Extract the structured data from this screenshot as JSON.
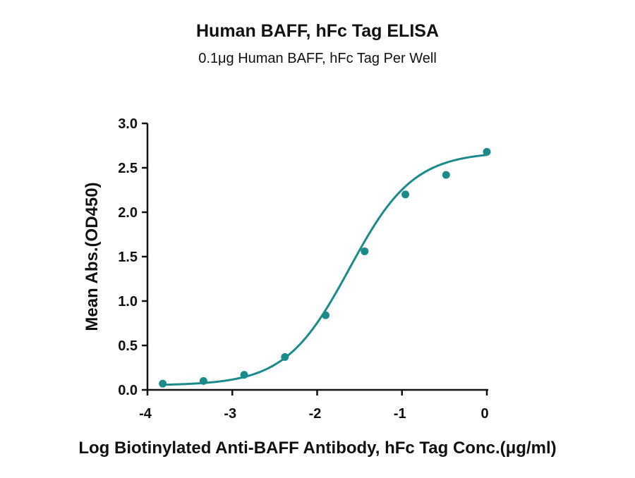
{
  "chart_data": {
    "type": "scatter",
    "title": "Human BAFF, hFc Tag ELISA",
    "subtitle": "0.1μg Human BAFF, hFc Tag Per Well",
    "xlabel": "Log Biotinylated Anti-BAFF Antibody, hFc Tag Conc.(μg/ml)",
    "ylabel": "Mean Abs.(OD450)",
    "xlim": [
      -4,
      0
    ],
    "ylim": [
      0,
      3.0
    ],
    "x_ticks": [
      "-4",
      "-3",
      "-2",
      "-1",
      "0"
    ],
    "y_ticks": [
      "0.0",
      "0.5",
      "1.0",
      "1.5",
      "2.0",
      "2.5",
      "3.0"
    ],
    "grid": false,
    "series": [
      {
        "color": "#1a8a8a",
        "x": [
          -3.82,
          -3.34,
          -2.86,
          -2.38,
          -1.9,
          -1.44,
          -0.96,
          -0.48,
          0.0
        ],
        "y": [
          0.07,
          0.1,
          0.17,
          0.37,
          0.84,
          1.56,
          2.2,
          2.42,
          2.68
        ],
        "fit": "4PL"
      }
    ]
  }
}
